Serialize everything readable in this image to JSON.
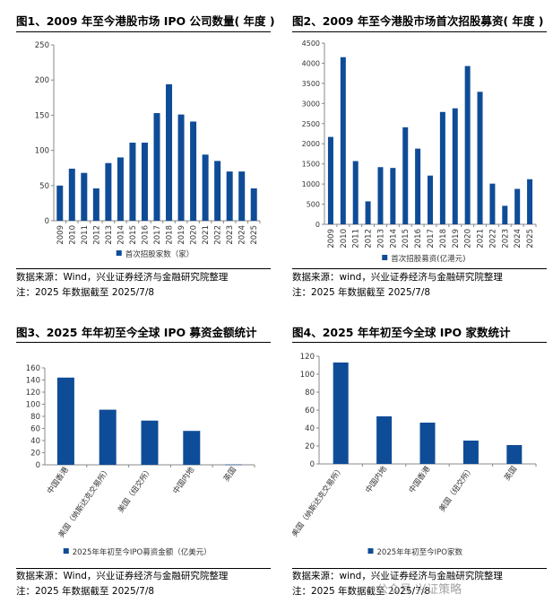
{
  "panels": [
    {
      "title": "图1、2009 年至今港股市场 IPO 公司数量( 年度 )",
      "source": "数据来源：Wind，兴业证券经济与金融研究院整理",
      "note": "注：2025 年数据截至 2025/7/8",
      "chart_data": {
        "type": "bar",
        "categories": [
          "2009",
          "2010",
          "2011",
          "2012",
          "2013",
          "2014",
          "2015",
          "2016",
          "2017",
          "2018",
          "2019",
          "2020",
          "2021",
          "2022",
          "2023",
          "2024",
          "2025"
        ],
        "series": [
          {
            "name": "首次招股家数（家）",
            "values": [
              50,
              74,
              68,
              46,
              82,
              90,
              111,
              111,
              153,
              194,
              151,
              141,
              94,
              85,
              70,
              70,
              46
            ]
          }
        ],
        "yticks": [
          0,
          50,
          100,
          150,
          200,
          250
        ],
        "ylim": [
          0,
          250
        ],
        "color": "#0f4c97",
        "legend_position": "bottom"
      }
    },
    {
      "title": "图2、2009 年至今港股市场首次招股募资( 年度 )",
      "source": "数据来源：wind，兴业证券经济与金融研究院整理",
      "note": "注：2025 年数据截至 2025/7/8",
      "chart_data": {
        "type": "bar",
        "categories": [
          "2009",
          "2010",
          "2011",
          "2012",
          "2013",
          "2014",
          "2015",
          "2016",
          "2017",
          "2018",
          "2019",
          "2020",
          "2021",
          "2022",
          "2023",
          "2024",
          "2025"
        ],
        "series": [
          {
            "name": "首次招股募资(亿港元)",
            "values": [
              2170,
              4150,
              1570,
              570,
              1420,
              1400,
              2410,
              1880,
              1210,
              2790,
              2880,
              3930,
              3290,
              1010,
              460,
              880,
              1120
            ]
          }
        ],
        "yticks": [
          0,
          500,
          1000,
          1500,
          2000,
          2500,
          3000,
          3500,
          4000,
          4500
        ],
        "ylim": [
          0,
          4500
        ],
        "color": "#0f4c97",
        "legend_position": "bottom"
      }
    },
    {
      "title": "图3、2025 年年初至今全球 IPO 募资金额统计",
      "source": "数据来源：Wind，兴业证券经济与金融研究院整理",
      "note": "注：2025 年数据截至 2025/7/8",
      "chart_data": {
        "type": "bar",
        "categories": [
          "中国香港",
          "美国（纳斯达克交易所）",
          "美国（纽交所）",
          "中国内地",
          "英国"
        ],
        "series": [
          {
            "name": "2025年年初至今IPO募资金额（亿美元）",
            "values": [
              144,
              91,
              73,
              56,
              0.5
            ]
          }
        ],
        "yticks": [
          0,
          20,
          40,
          60,
          80,
          100,
          120,
          140,
          160
        ],
        "ylim": [
          0,
          160
        ],
        "color": "#0f4c97",
        "legend_position": "bottom"
      }
    },
    {
      "title": "图4、2025 年年初至今全球 IPO 家数统计",
      "source": "数据来源：wind，兴业证券经济与金融研究院整理",
      "note": "注：2025 年数据截至 2025/7/8",
      "chart_data": {
        "type": "bar",
        "categories": [
          "美国（纳斯达克交易所）",
          "中国内地",
          "中国香港",
          "美国（纽交所）",
          "英国"
        ],
        "series": [
          {
            "name": "2025年年初至今IPO家数",
            "values": [
              113,
              53,
              46,
              26,
              21
            ]
          }
        ],
        "yticks": [
          0,
          20,
          40,
          60,
          80,
          100,
          120
        ],
        "ylim": [
          0,
          120
        ],
        "color": "#0f4c97",
        "legend_position": "bottom"
      }
    }
  ],
  "watermark": "公众号·兴证策略"
}
